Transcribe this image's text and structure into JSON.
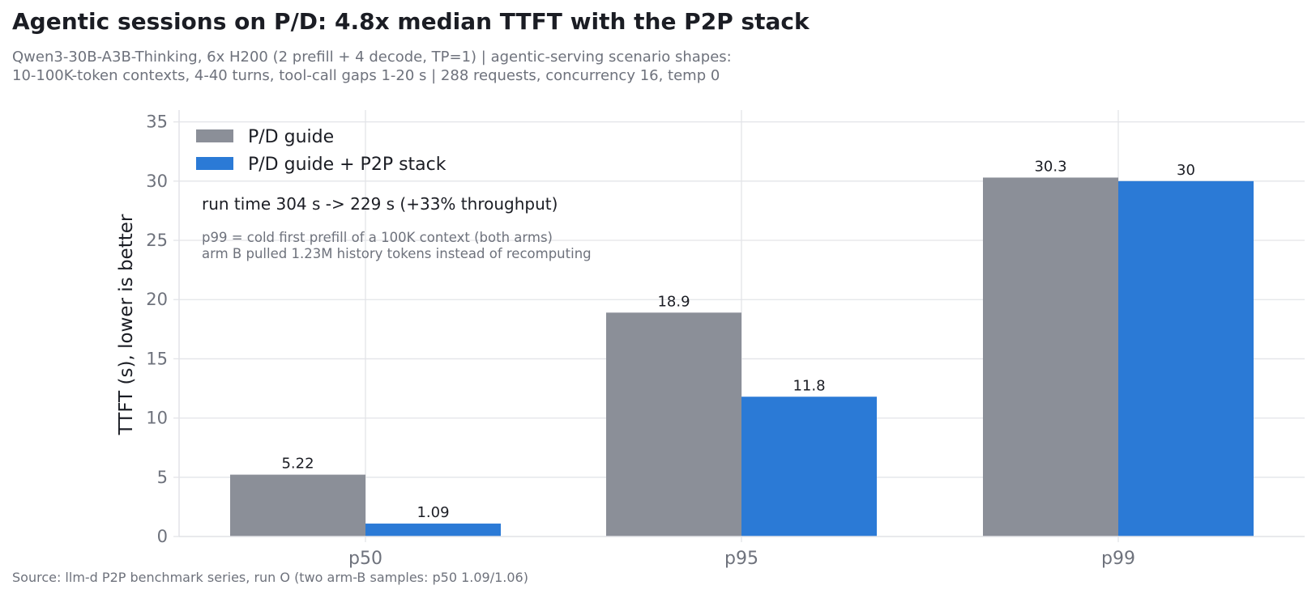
{
  "title": "Agentic sessions on P/D: 4.8x median TTFT with the P2P stack",
  "subtitle_lines": [
    "Qwen3-30B-A3B-Thinking, 6x H200 (2 prefill + 4 decode, TP=1) | agentic-serving scenario shapes:",
    "10-100K-token contexts, 4-40 turns, tool-call gaps 1-20 s | 288 requests, concurrency 16, temp 0"
  ],
  "source": "Source: llm-d P2P benchmark series, run O (two arm-B samples: p50 1.09/1.06)",
  "colors": {
    "baseline": "#8b8f98",
    "p2p": "#2b7ad6",
    "grid": "#e3e4e8",
    "text": "#1b1d24",
    "muted": "#6e727c"
  },
  "chart_data": {
    "type": "bar",
    "categories": [
      "p50",
      "p95",
      "p99"
    ],
    "series": [
      {
        "name": "P/D guide",
        "values": [
          5.22,
          18.9,
          30.3
        ],
        "labels": [
          "5.22",
          "18.9",
          "30.3"
        ]
      },
      {
        "name": "P/D guide + P2P stack",
        "values": [
          1.09,
          11.8,
          30.0
        ],
        "labels": [
          "1.09",
          "11.8",
          "30"
        ]
      }
    ],
    "ylabel": "TTFT (s), lower is better",
    "ylim": [
      0,
      36
    ],
    "yticks": [
      0,
      5,
      10,
      15,
      20,
      25,
      30,
      35
    ],
    "grid": true,
    "legend_position": "top-left",
    "annotations": {
      "main": "run time 304 s -> 229 s (+33% throughput)",
      "sub": [
        "p99 = cold first prefill of a 100K context (both arms)",
        "arm B pulled 1.23M history tokens instead of recomputing"
      ]
    }
  }
}
